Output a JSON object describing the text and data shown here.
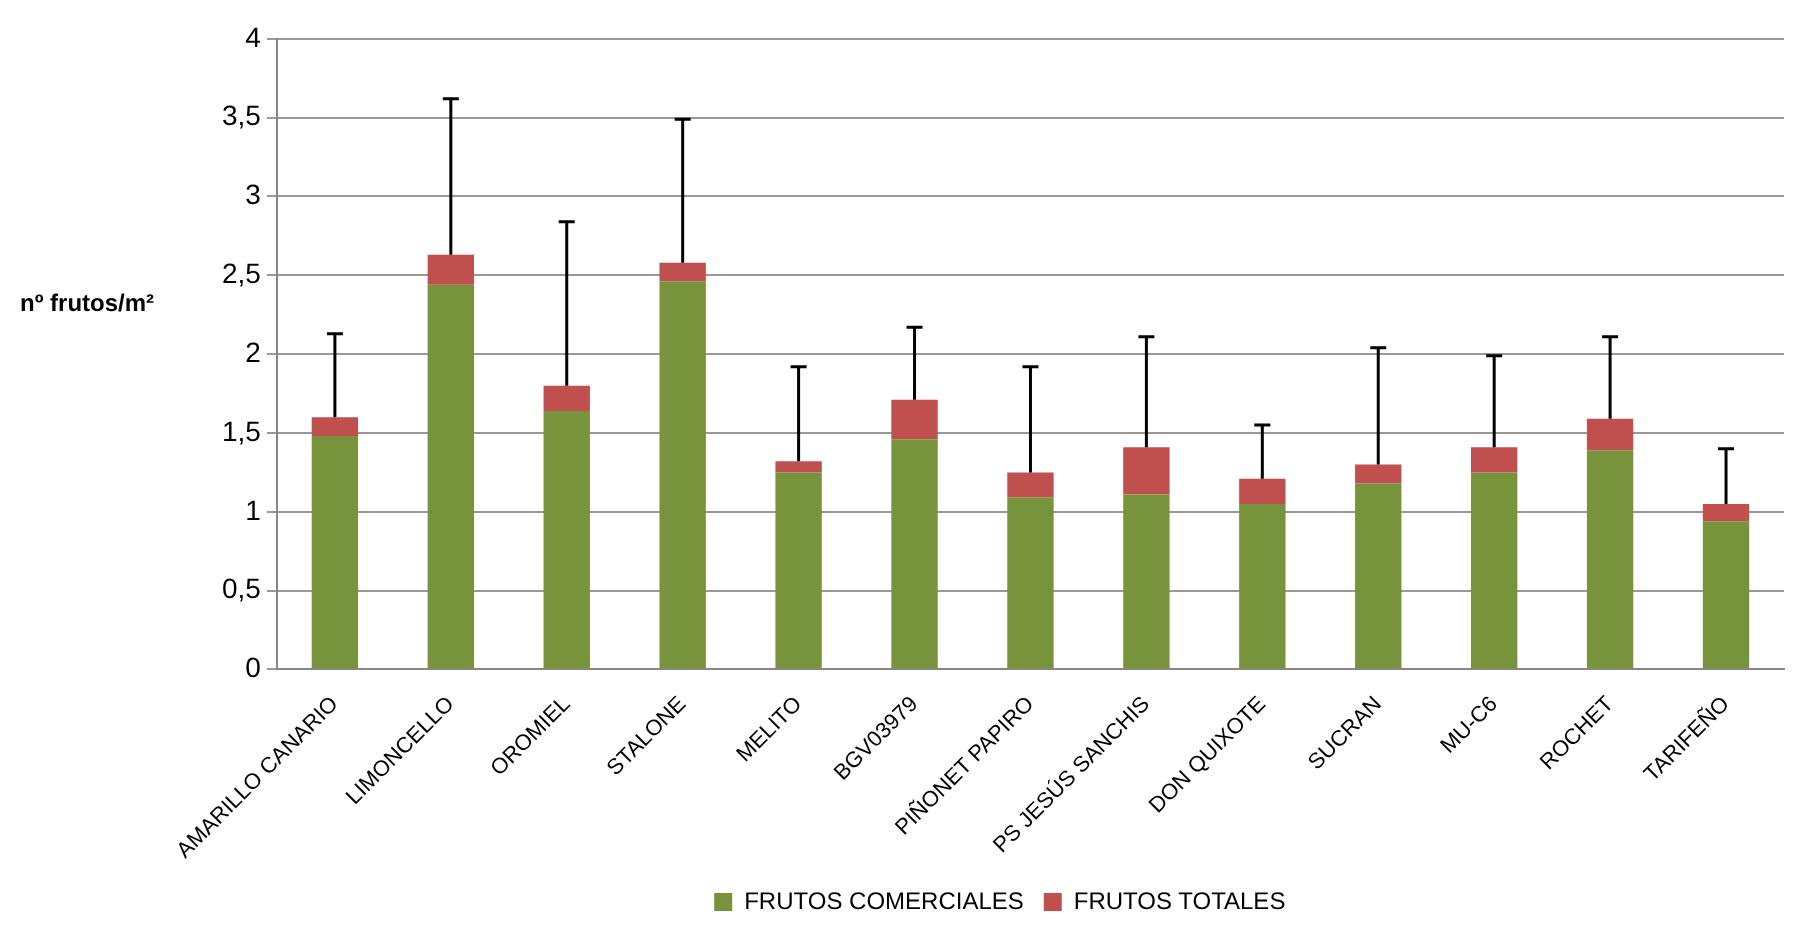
{
  "chart_data": {
    "type": "bar",
    "stacked": true,
    "ylabel": "nº frutos/m²",
    "categories": [
      "AMARILLO CANARIO",
      "LIMONCELLO",
      "OROMIEL",
      "STALONE",
      "MELITO",
      "BGV03979",
      "PIÑONET PAPIRO",
      "PS JESÚS SANCHIS",
      "DON QUIXOTE",
      "SUCRAN",
      "MU-C6",
      "ROCHET",
      "TARIFEÑO"
    ],
    "series": [
      {
        "name": "FRUTOS COMERCIALES",
        "color": "#77933c",
        "values": [
          1.48,
          2.44,
          1.64,
          2.46,
          1.25,
          1.46,
          1.09,
          1.11,
          1.05,
          1.18,
          1.25,
          1.39,
          0.94
        ]
      },
      {
        "name": "FRUTOS TOTALES",
        "color": "#c0504d",
        "values": [
          0.12,
          0.19,
          0.16,
          0.12,
          0.07,
          0.25,
          0.16,
          0.3,
          0.16,
          0.12,
          0.16,
          0.2,
          0.11
        ],
        "errors": [
          [
            1.6,
            2.13
          ],
          [
            2.63,
            3.62
          ],
          [
            1.8,
            2.84
          ],
          [
            2.58,
            3.49
          ],
          [
            1.32,
            1.92
          ],
          [
            1.71,
            2.17
          ],
          [
            1.25,
            1.92
          ],
          [
            1.41,
            2.11
          ],
          [
            1.21,
            1.55
          ],
          [
            1.3,
            2.04
          ],
          [
            1.41,
            1.99
          ],
          [
            1.59,
            2.11
          ],
          [
            1.05,
            1.4
          ]
        ]
      }
    ],
    "ylim": [
      0,
      4
    ],
    "yticks": [
      0,
      {
        "value": 0.5,
        "label": "0,5"
      },
      1,
      {
        "value": 1.5,
        "label": "1,5"
      },
      2,
      {
        "value": 2.5,
        "label": "2,5"
      },
      3,
      {
        "value": 3.5,
        "label": "3,5"
      },
      4
    ],
    "grid": "y",
    "legend": "bottom"
  }
}
